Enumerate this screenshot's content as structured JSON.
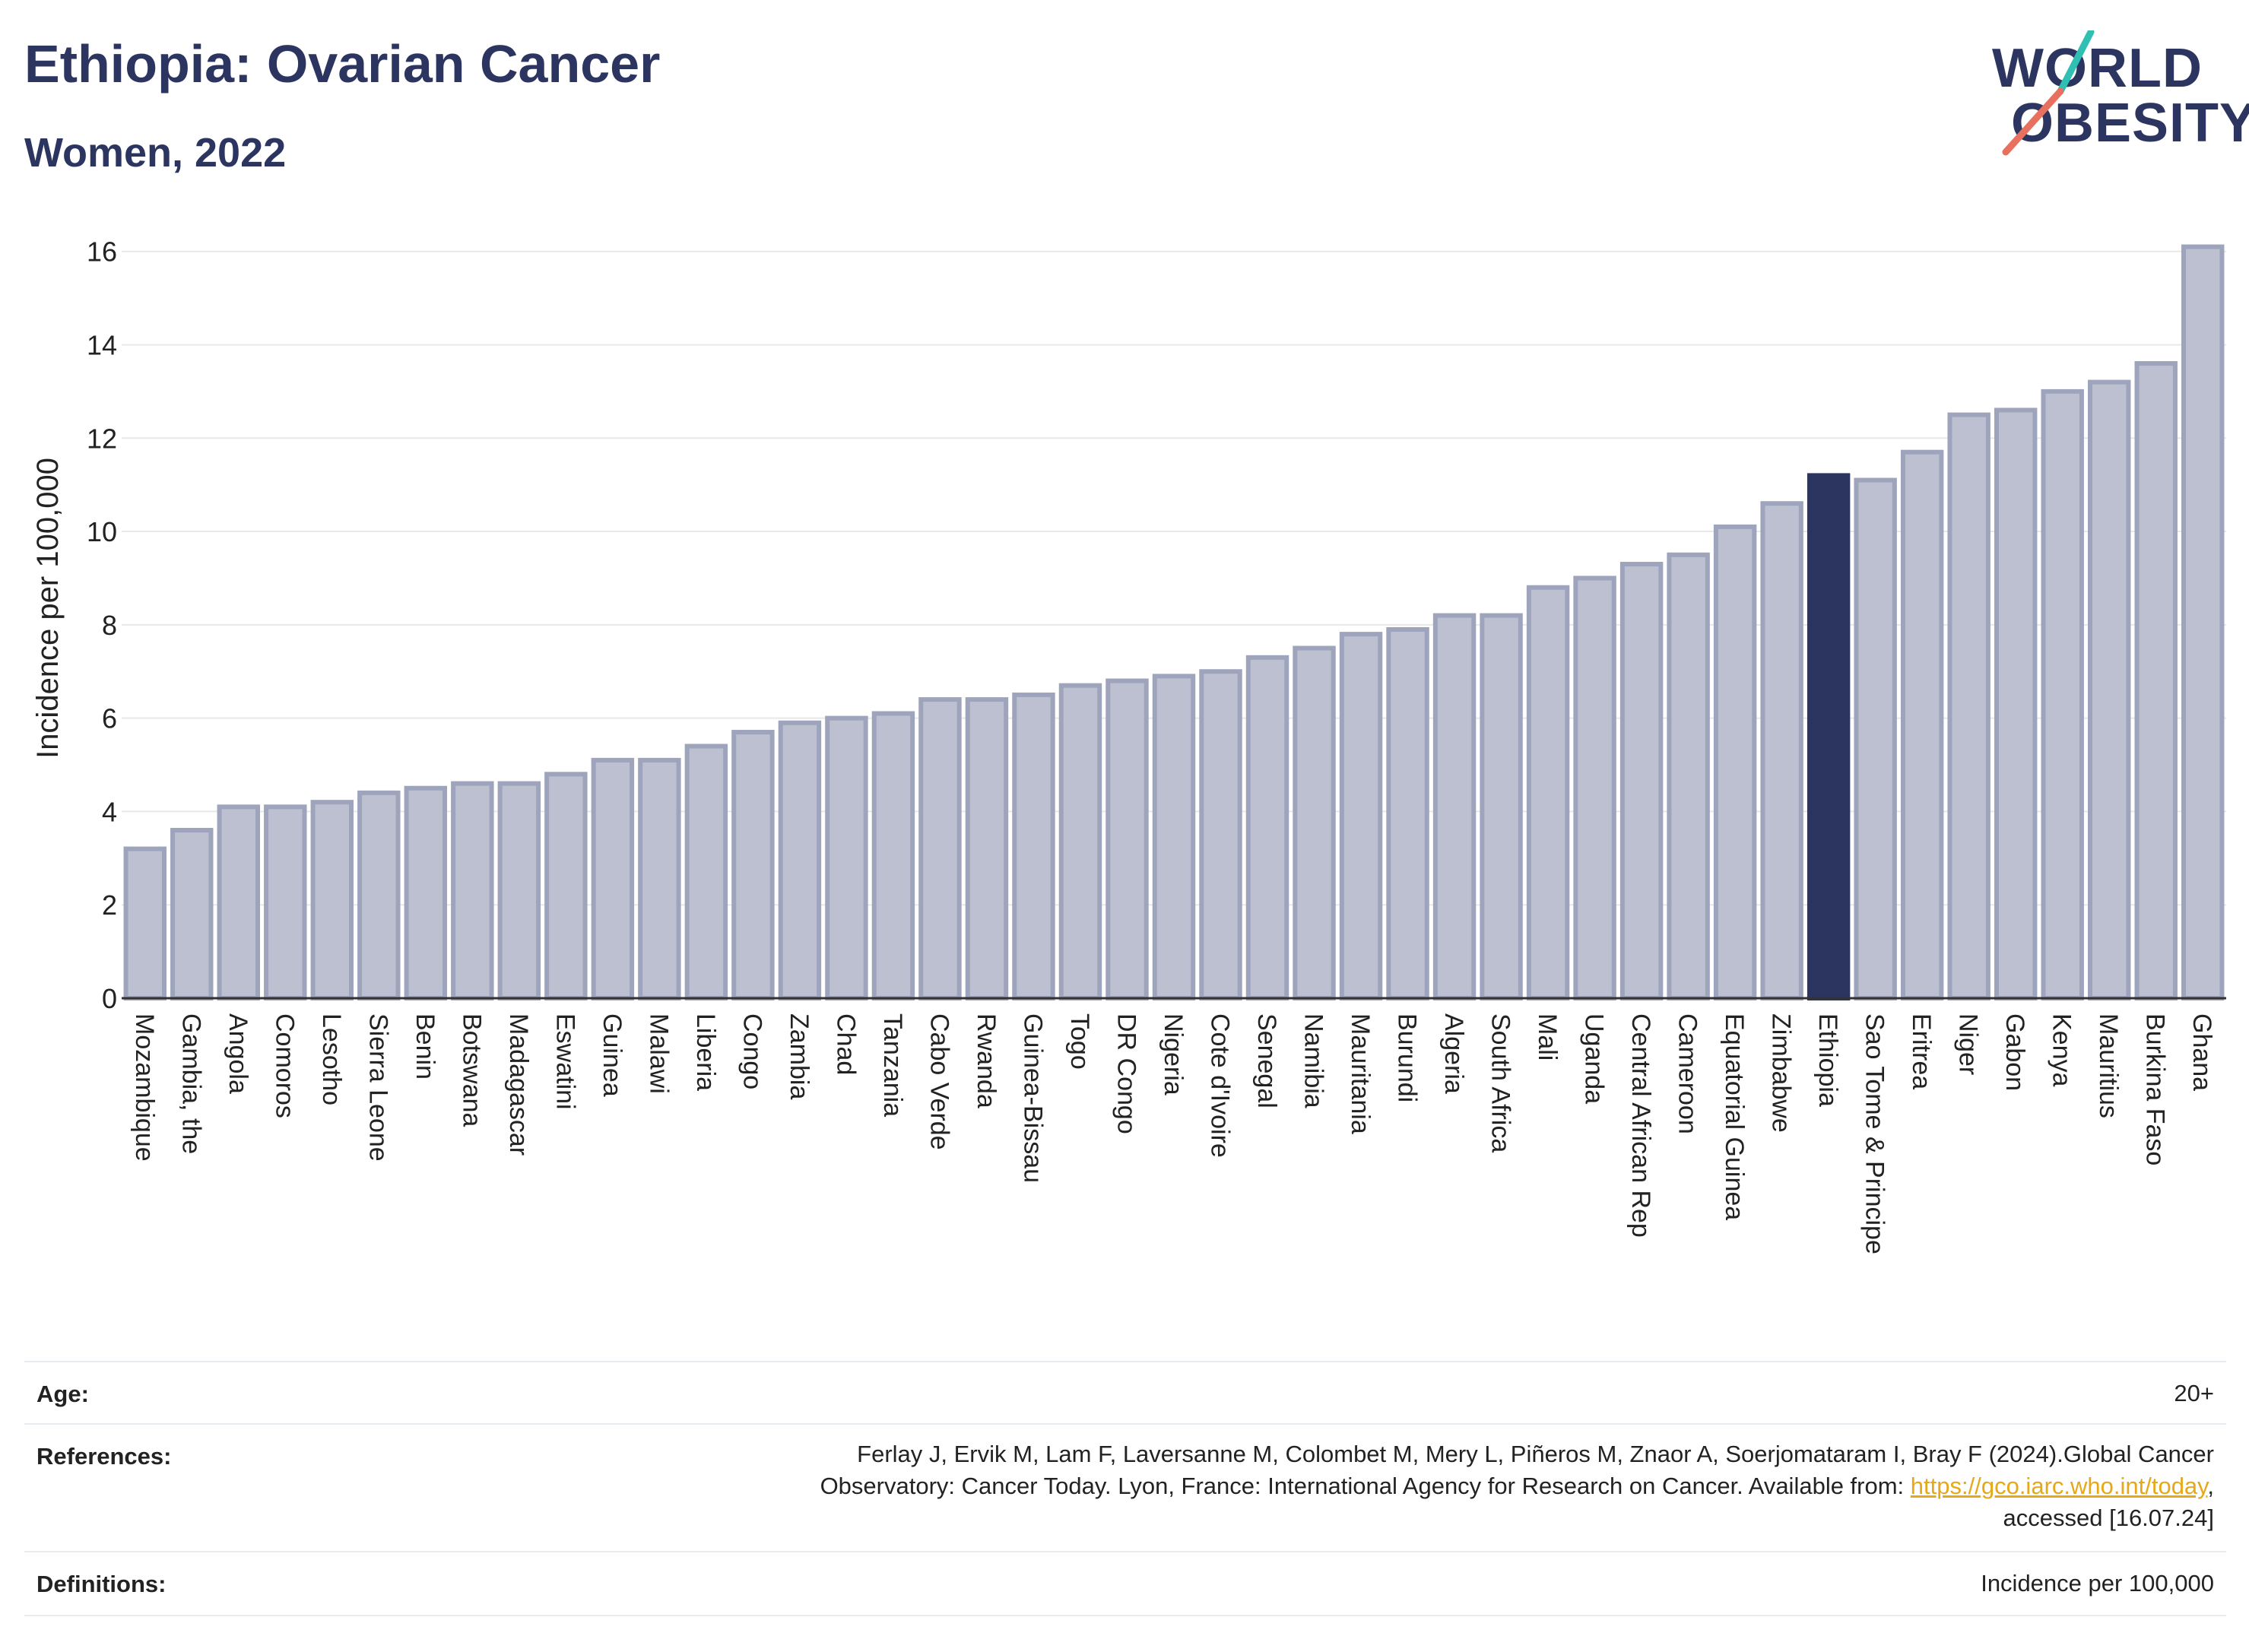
{
  "header": {
    "title": "Ethiopia: Ovarian Cancer",
    "subtitle": "Women, 2022"
  },
  "logo": {
    "line1": "WORLD",
    "line2": "OBESITY",
    "colors": {
      "text": "#2b3560",
      "slash_teal": "#2fbfb3",
      "slash_coral": "#e8705f"
    }
  },
  "colors": {
    "bar": "#bcc0d0",
    "bar_stroke": "#9ea4bb",
    "highlight": "#2b3560",
    "grid": "#e8e8e8",
    "axis": "#333333"
  },
  "chart_data": {
    "type": "bar",
    "title": "",
    "ylabel": "Incidence per 100,000",
    "xlabel": "",
    "ylim": [
      0,
      16.5
    ],
    "yticks": [
      0,
      2,
      4,
      6,
      8,
      10,
      12,
      14,
      16
    ],
    "grid": true,
    "highlight": "Ethiopia",
    "categories": [
      "Mozambique",
      "Gambia, the",
      "Angola",
      "Comoros",
      "Lesotho",
      "Sierra Leone",
      "Benin",
      "Botswana",
      "Madagascar",
      "Eswatini",
      "Guinea",
      "Malawi",
      "Liberia",
      "Congo",
      "Zambia",
      "Chad",
      "Tanzania",
      "Cabo Verde",
      "Rwanda",
      "Guinea-Bissau",
      "Togo",
      "DR Congo",
      "Nigeria",
      "Cote d'Ivoire",
      "Senegal",
      "Namibia",
      "Mauritania",
      "Burundi",
      "Algeria",
      "South Africa",
      "Mali",
      "Uganda",
      "Central African Rep",
      "Cameroon",
      "Equatorial Guinea",
      "Zimbabwe",
      "Ethiopia",
      "Sao Tome & Principe",
      "Eritrea",
      "Niger",
      "Gabon",
      "Kenya",
      "Mauritius",
      "Burkina Faso",
      "Ghana"
    ],
    "values": [
      3.2,
      3.6,
      4.1,
      4.1,
      4.2,
      4.4,
      4.5,
      4.6,
      4.6,
      4.8,
      5.1,
      5.1,
      5.4,
      5.7,
      5.9,
      6.0,
      6.1,
      6.4,
      6.4,
      6.5,
      6.7,
      6.8,
      6.9,
      7.0,
      7.3,
      7.5,
      7.8,
      7.9,
      8.2,
      8.2,
      8.8,
      9.0,
      9.3,
      9.5,
      10.1,
      10.6,
      11.2,
      11.1,
      11.7,
      12.5,
      12.6,
      13.0,
      13.2,
      13.6,
      16.1
    ]
  },
  "meta": {
    "age_label": "Age:",
    "age_value": "20+",
    "references_label": "References:",
    "references_line1": "Ferlay J, Ervik M, Lam F, Laversanne M, Colombet M, Mery L, Piñeros M, Znaor A, Soerjomataram I, Bray F (2024).Global Cancer",
    "references_line2_prefix": "Observatory: Cancer Today. Lyon, France: International Agency for Research on Cancer. Available from: ",
    "references_link": "https://gco.iarc.who.int/today",
    "references_line2_suffix": ",",
    "references_line3": "accessed [16.07.24]",
    "definitions_label": "Definitions:",
    "definitions_value": "Incidence per 100,000"
  }
}
